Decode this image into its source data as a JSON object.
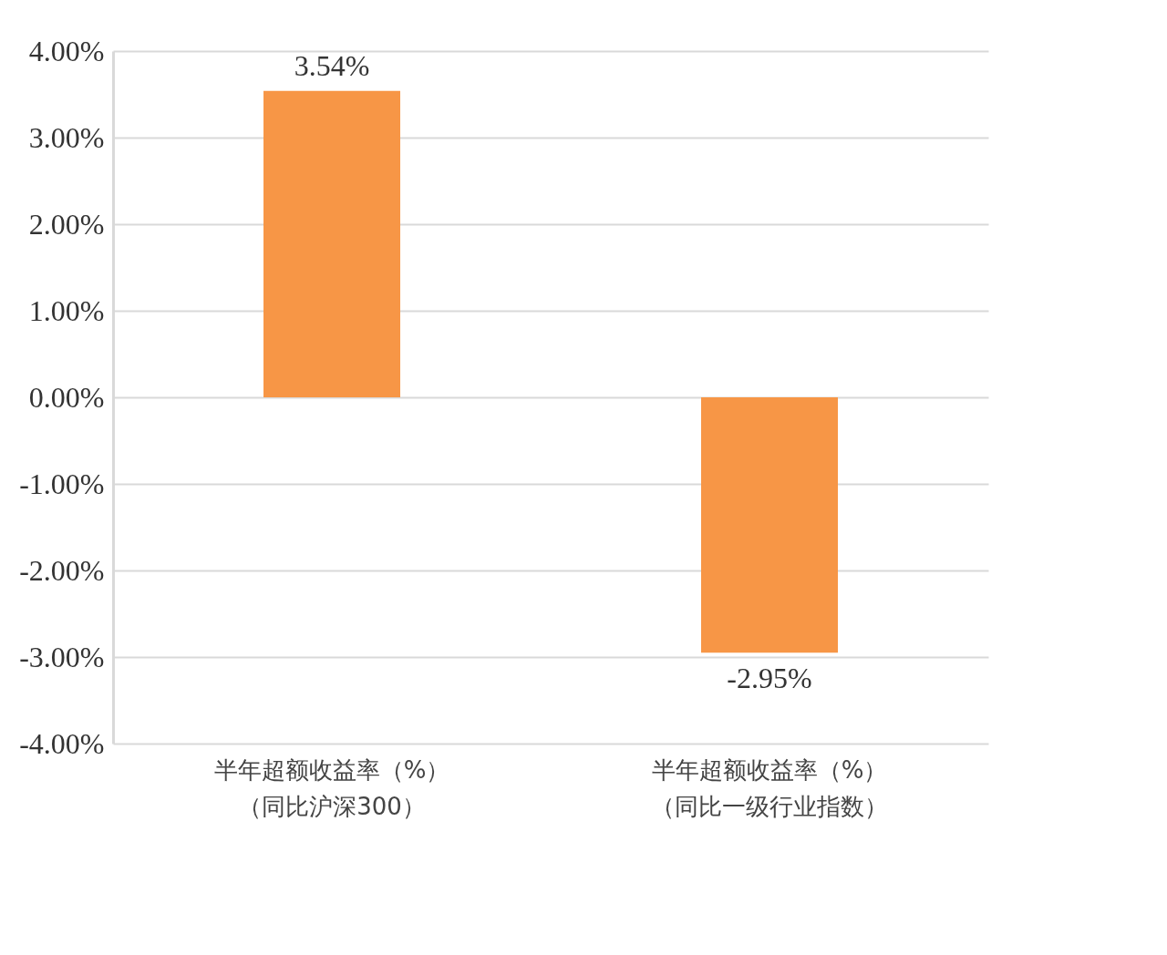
{
  "chart_data": {
    "type": "bar",
    "categories": [
      "半年超额收益率（%）（同比沪深300）",
      "半年超额收益率（%）（同比一级行业指数）"
    ],
    "values": [
      3.54,
      -2.95
    ],
    "color": "#f79646",
    "value_labels": [
      "3.54%",
      "-2.95%"
    ],
    "ylim": [
      -4,
      4
    ],
    "yticks": [
      {
        "value": -4,
        "label": "-4.00%"
      },
      {
        "value": -3,
        "label": "-3.00%"
      },
      {
        "value": -2,
        "label": "-2.00%"
      },
      {
        "value": -1,
        "label": "-1.00%"
      },
      {
        "value": 0,
        "label": "0.00%"
      },
      {
        "value": 1,
        "label": "1.00%"
      },
      {
        "value": 2,
        "label": "2.00%"
      },
      {
        "value": 3,
        "label": "3.00%"
      },
      {
        "value": 4,
        "label": "4.00%"
      }
    ],
    "grid": "y"
  }
}
